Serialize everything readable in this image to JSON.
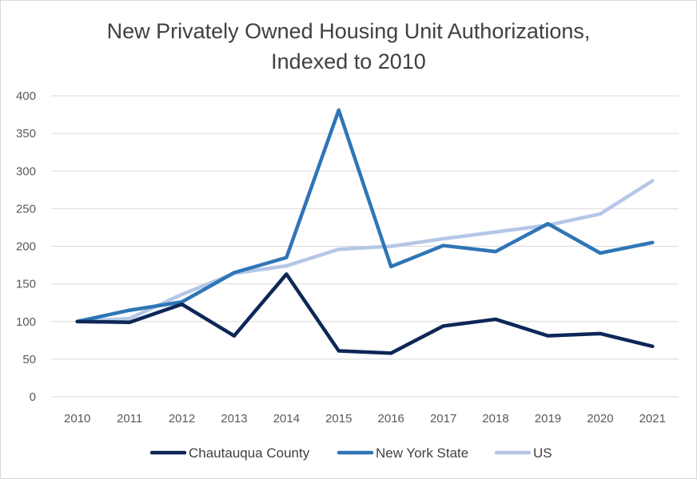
{
  "chart_data": {
    "type": "line",
    "title_lines": [
      "New Privately Owned Housing Unit Authorizations,",
      "Indexed to 2010"
    ],
    "xlabel": "",
    "ylabel": "",
    "categories": [
      "2010",
      "2011",
      "2012",
      "2013",
      "2014",
      "2015",
      "2016",
      "2017",
      "2018",
      "2019",
      "2020",
      "2021"
    ],
    "y_ticks": [
      0,
      50,
      100,
      150,
      200,
      250,
      300,
      350,
      400
    ],
    "ylim": [
      0,
      400
    ],
    "grid": true,
    "legend_position": "bottom",
    "series": [
      {
        "name": "Chautauqua County",
        "color": "#0d2757",
        "values": [
          100,
          99,
          123,
          81,
          163,
          61,
          58,
          94,
          103,
          81,
          84,
          67
        ]
      },
      {
        "name": "New York State",
        "color": "#2e75b6",
        "values": [
          100,
          115,
          126,
          165,
          185,
          381,
          173,
          201,
          193,
          230,
          191,
          205
        ]
      },
      {
        "name": "US",
        "color": "#b4c7e7",
        "values": [
          100,
          104,
          136,
          164,
          174,
          196,
          200,
          210,
          219,
          228,
          243,
          287
        ]
      }
    ]
  }
}
